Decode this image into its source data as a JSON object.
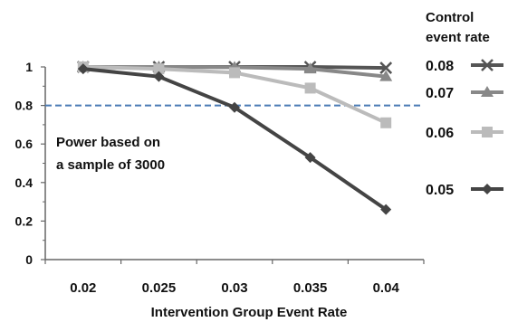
{
  "chart_data": {
    "type": "line",
    "xlabel": "Intervention Group Event Rate",
    "ylabel": "",
    "categories": [
      "0.02",
      "0.025",
      "0.03",
      "0.035",
      "0.04"
    ],
    "y_ticks": [
      "0",
      "0.2",
      "0.4",
      "0.6",
      "0.8",
      "1"
    ],
    "ylim": [
      0,
      1
    ],
    "grid": false,
    "legend_title_lines": [
      "Control",
      "event rate"
    ],
    "legend_position": "right",
    "series": [
      {
        "name": "0.08",
        "values": [
          1.0,
          1.0,
          1.0,
          1.0,
          0.995
        ],
        "color": "#555555",
        "marker": "x"
      },
      {
        "name": "0.07",
        "values": [
          1.0,
          1.0,
          0.998,
          0.99,
          0.95
        ],
        "color": "#888888",
        "marker": "triangle"
      },
      {
        "name": "0.06",
        "values": [
          1.0,
          0.99,
          0.97,
          0.89,
          0.71
        ],
        "color": "#bbbbbb",
        "marker": "square"
      },
      {
        "name": "0.05",
        "values": [
          0.99,
          0.95,
          0.79,
          0.53,
          0.26
        ],
        "color": "#444444",
        "marker": "diamond"
      }
    ],
    "reference_line": {
      "value": 0.8,
      "color": "#4a7bb5",
      "style": "dashed"
    },
    "annotation_lines": [
      "Power based on",
      "a sample of 3000"
    ]
  }
}
